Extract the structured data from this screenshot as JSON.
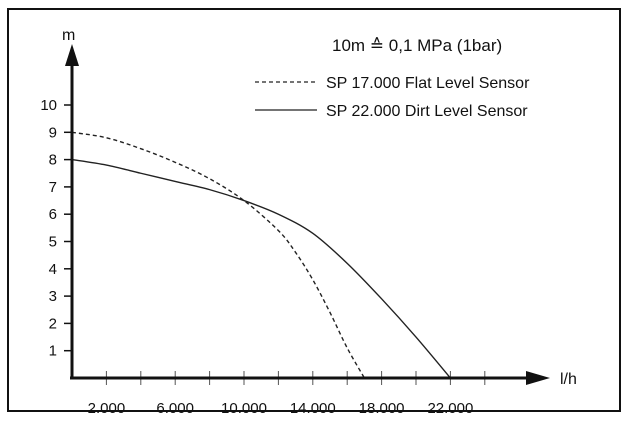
{
  "chart_data": {
    "type": "line",
    "xlabel": "l/h",
    "ylabel": "m",
    "xlim": [
      0,
      25000
    ],
    "ylim": [
      0,
      11
    ],
    "x_ticks": [
      2000,
      4000,
      6000,
      8000,
      10000,
      12000,
      14000,
      16000,
      18000,
      20000,
      22000,
      24000
    ],
    "x_tick_labels": [
      "2.000",
      "6.000",
      "10.000",
      "14.000",
      "18.000",
      "22.000"
    ],
    "x_tick_label_values": [
      2000,
      6000,
      10000,
      14000,
      18000,
      22000
    ],
    "y_ticks": [
      1,
      2,
      3,
      4,
      5,
      6,
      7,
      8,
      9,
      10
    ],
    "y_tick_labels": [
      "1",
      "2",
      "3",
      "4",
      "5",
      "6",
      "7",
      "8",
      "9",
      "10"
    ],
    "annotation": "10m ≙ 0,1 MPa (1bar)",
    "legend_position": "top-right",
    "grid": false,
    "series": [
      {
        "name": "SP 17.000 Flat Level Sensor",
        "style": "dashed",
        "x": [
          0,
          2000,
          4000,
          6000,
          8000,
          10000,
          12000,
          13000,
          14000,
          15000,
          16000,
          17000
        ],
        "y": [
          9.0,
          8.8,
          8.4,
          7.9,
          7.3,
          6.5,
          5.4,
          4.6,
          3.6,
          2.4,
          1.1,
          0
        ]
      },
      {
        "name": "SP 22.000 Dirt Level Sensor",
        "style": "solid",
        "x": [
          0,
          2000,
          4000,
          6000,
          8000,
          10000,
          12000,
          14000,
          16000,
          18000,
          20000,
          22000
        ],
        "y": [
          8.0,
          7.8,
          7.5,
          7.2,
          6.9,
          6.5,
          6.0,
          5.3,
          4.2,
          2.9,
          1.5,
          0
        ]
      }
    ]
  }
}
